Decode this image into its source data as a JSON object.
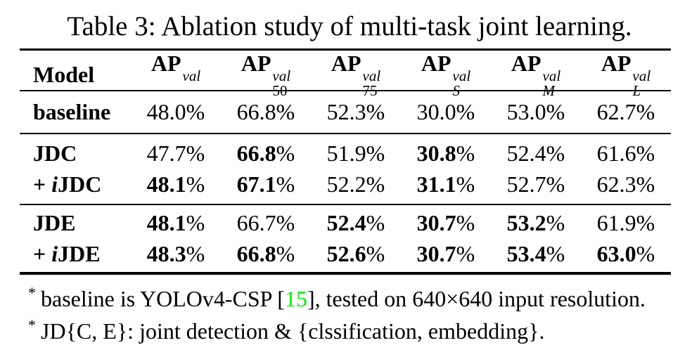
{
  "title": "Table 3: Ablation study of multi-task joint learning.",
  "colors": {
    "text": "#000000",
    "background": "#ffffff",
    "rule": "#000000",
    "citation": "#00ee00"
  },
  "table": {
    "model_header": "Model",
    "percent": "%",
    "columns": [
      {
        "base": "AP",
        "sup": "val",
        "sub": "",
        "sub_italic": false
      },
      {
        "base": "AP",
        "sup": "val",
        "sub": "50",
        "sub_italic": false
      },
      {
        "base": "AP",
        "sup": "val",
        "sub": "75",
        "sub_italic": false
      },
      {
        "base": "AP",
        "sup": "val",
        "sub": "S",
        "sub_italic": true
      },
      {
        "base": "AP",
        "sup": "val",
        "sub": "M",
        "sub_italic": true
      },
      {
        "base": "AP",
        "sup": "val",
        "sub": "L",
        "sub_italic": true
      }
    ],
    "sections": [
      {
        "rows": [
          {
            "model": {
              "prefix": "",
              "italic": "",
              "name": "baseline"
            },
            "values": [
              {
                "v": "48.0",
                "bold": false
              },
              {
                "v": "66.8",
                "bold": false
              },
              {
                "v": "52.3",
                "bold": false
              },
              {
                "v": "30.0",
                "bold": false
              },
              {
                "v": "53.0",
                "bold": false
              },
              {
                "v": "62.7",
                "bold": false
              }
            ]
          }
        ]
      },
      {
        "rows": [
          {
            "model": {
              "prefix": "",
              "italic": "",
              "name": "JDC"
            },
            "values": [
              {
                "v": "47.7",
                "bold": false
              },
              {
                "v": "66.8",
                "bold": true
              },
              {
                "v": "51.9",
                "bold": false
              },
              {
                "v": "30.8",
                "bold": true
              },
              {
                "v": "52.4",
                "bold": false
              },
              {
                "v": "61.6",
                "bold": false
              }
            ]
          },
          {
            "model": {
              "prefix": "+ ",
              "italic": "i",
              "name": "JDC"
            },
            "values": [
              {
                "v": "48.1",
                "bold": true
              },
              {
                "v": "67.1",
                "bold": true
              },
              {
                "v": "52.2",
                "bold": false
              },
              {
                "v": "31.1",
                "bold": true
              },
              {
                "v": "52.7",
                "bold": false
              },
              {
                "v": "62.3",
                "bold": false
              }
            ]
          }
        ]
      },
      {
        "rows": [
          {
            "model": {
              "prefix": "",
              "italic": "",
              "name": "JDE"
            },
            "values": [
              {
                "v": "48.1",
                "bold": true
              },
              {
                "v": "66.7",
                "bold": false
              },
              {
                "v": "52.4",
                "bold": true
              },
              {
                "v": "30.7",
                "bold": true
              },
              {
                "v": "53.2",
                "bold": true
              },
              {
                "v": "61.9",
                "bold": false
              }
            ]
          },
          {
            "model": {
              "prefix": "+ ",
              "italic": "i",
              "name": "JDE"
            },
            "values": [
              {
                "v": "48.3",
                "bold": true
              },
              {
                "v": "66.8",
                "bold": true
              },
              {
                "v": "52.6",
                "bold": true
              },
              {
                "v": "30.7",
                "bold": true
              },
              {
                "v": "53.4",
                "bold": true
              },
              {
                "v": "63.0",
                "bold": true
              }
            ]
          }
        ]
      }
    ]
  },
  "footnotes": [
    {
      "marker": "*",
      "parts": [
        {
          "text": "baseline is YOLOv4-CSP ["
        },
        {
          "text": "15",
          "citation": true
        },
        {
          "text": "], tested on 640×640 input resolution."
        }
      ]
    },
    {
      "marker": "*",
      "parts": [
        {
          "text": "JD{C, E}: joint detection & {clssification, embedding}."
        }
      ]
    }
  ]
}
